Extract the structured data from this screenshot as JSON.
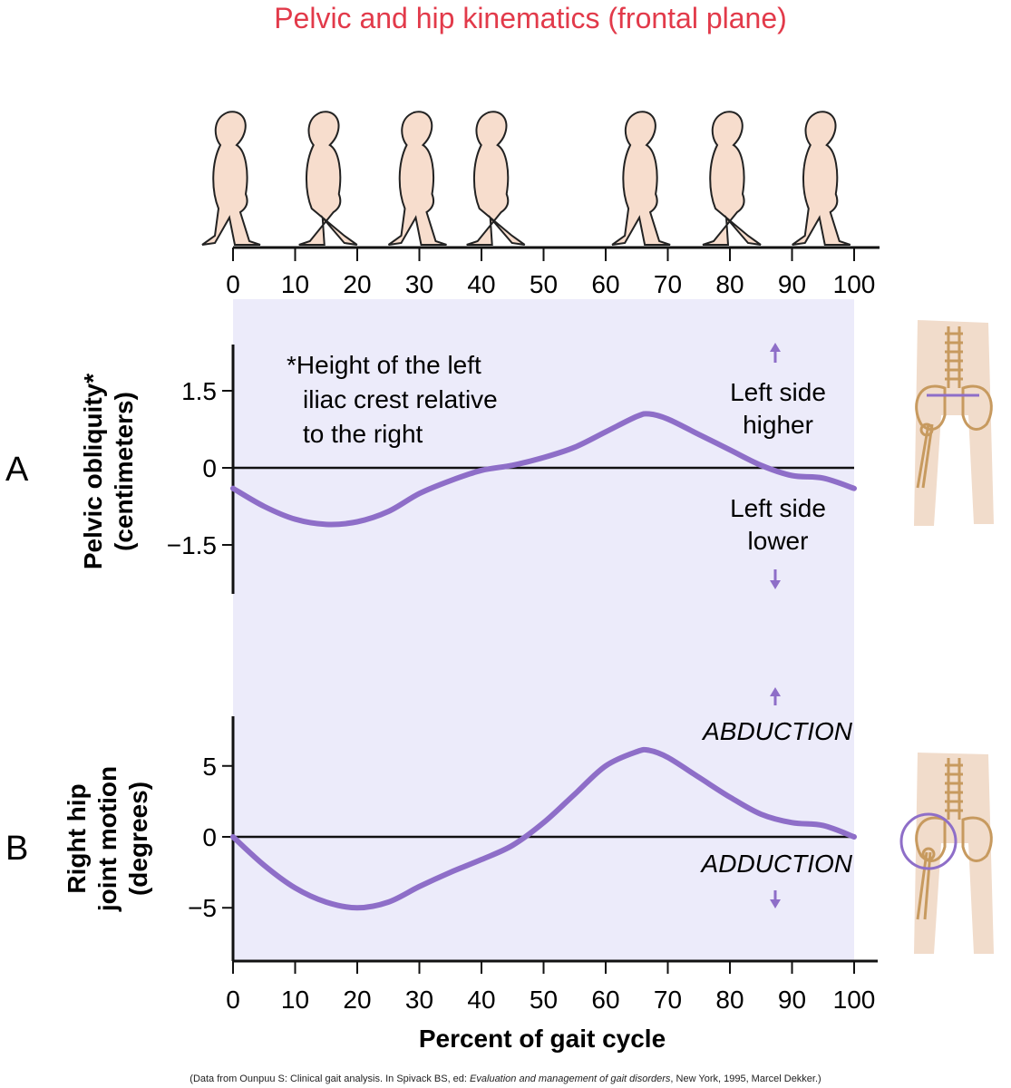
{
  "title": "Pelvic and hip kinematics (frontal plane)",
  "colors": {
    "title": "#e23a4a",
    "curve": "#8e6ec8",
    "panel_bg": "#ecebfa",
    "figure": "#f7ddcd",
    "bone": "#c79a5f"
  },
  "icons": [
    "walking-figure-icon",
    "pelvis-skeleton-icon",
    "hip-joint-circle-icon"
  ],
  "top_axis": {
    "ticks": [
      "0",
      "10",
      "20",
      "30",
      "40",
      "50",
      "60",
      "70",
      "80",
      "90",
      "100"
    ]
  },
  "bottom_axis": {
    "ticks": [
      "0",
      "10",
      "20",
      "30",
      "40",
      "50",
      "60",
      "70",
      "80",
      "90",
      "100"
    ],
    "xlabel": "Percent of gait cycle"
  },
  "panel_a": {
    "letter": "A",
    "ylabel_line1": "Pelvic obliquity*",
    "ylabel_line2": "(centimeters)",
    "yticks": [
      "1.5",
      "0",
      "−1.5"
    ],
    "note_line1": "*Height of the left",
    "note_line2": "iliac crest relative",
    "note_line3": "to the right",
    "upper_line1": "Left side",
    "upper_line2": "higher",
    "lower_line1": "Left side",
    "lower_line2": "lower"
  },
  "panel_b": {
    "letter": "B",
    "ylabel_line1": "Right hip",
    "ylabel_line2": "joint motion",
    "ylabel_line3": "(degrees)",
    "yticks": [
      "5",
      "0",
      "−5"
    ],
    "upper_label": "ABDUCTION",
    "lower_label": "ADDUCTION"
  },
  "caption_before": "(Data from Ounpuu S: Clinical gait analysis. In Spivack BS, ed: ",
  "caption_italic": "Evaluation and management of gait disorders",
  "caption_after": ", New York, 1995, Marcel Dekker.)",
  "chart_data": [
    {
      "type": "line",
      "panel": "A",
      "xlabel": "Percent of gait cycle",
      "ylabel": "Pelvic obliquity* (centimeters)",
      "xlim": [
        0,
        100
      ],
      "ylim": [
        -2.4,
        2.4
      ],
      "yticks": [
        1.5,
        0,
        -1.5
      ],
      "series": [
        {
          "values": [
            [
              0,
              -0.4
            ],
            [
              5,
              -0.75
            ],
            [
              10,
              -1.0
            ],
            [
              15,
              -1.1
            ],
            [
              20,
              -1.05
            ],
            [
              25,
              -0.85
            ],
            [
              30,
              -0.5
            ],
            [
              35,
              -0.25
            ],
            [
              40,
              -0.05
            ],
            [
              45,
              0.05
            ],
            [
              50,
              0.2
            ],
            [
              55,
              0.4
            ],
            [
              60,
              0.7
            ],
            [
              65,
              1.0
            ],
            [
              67,
              1.05
            ],
            [
              70,
              0.95
            ],
            [
              75,
              0.65
            ],
            [
              80,
              0.35
            ],
            [
              85,
              0.05
            ],
            [
              90,
              -0.15
            ],
            [
              95,
              -0.2
            ],
            [
              100,
              -0.4
            ]
          ]
        }
      ]
    },
    {
      "type": "line",
      "panel": "B",
      "xlabel": "Percent of gait cycle",
      "ylabel": "Right hip joint motion (degrees)",
      "xlim": [
        0,
        100
      ],
      "ylim": [
        -8.5,
        8.5
      ],
      "yticks": [
        5,
        0,
        -5
      ],
      "series": [
        {
          "values": [
            [
              0,
              0
            ],
            [
              5,
              -2
            ],
            [
              10,
              -3.6
            ],
            [
              15,
              -4.6
            ],
            [
              20,
              -5.0
            ],
            [
              25,
              -4.6
            ],
            [
              30,
              -3.5
            ],
            [
              35,
              -2.5
            ],
            [
              40,
              -1.6
            ],
            [
              45,
              -0.6
            ],
            [
              50,
              1.0
            ],
            [
              55,
              3.0
            ],
            [
              60,
              5.0
            ],
            [
              65,
              6.0
            ],
            [
              67,
              6.1
            ],
            [
              70,
              5.6
            ],
            [
              75,
              4.2
            ],
            [
              80,
              2.8
            ],
            [
              85,
              1.6
            ],
            [
              90,
              1.0
            ],
            [
              95,
              0.8
            ],
            [
              100,
              0
            ]
          ]
        }
      ]
    }
  ]
}
